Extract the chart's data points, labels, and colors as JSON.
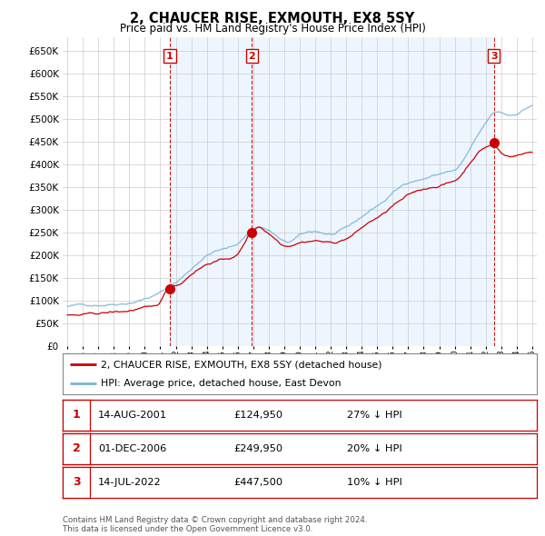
{
  "title": "2, CHAUCER RISE, EXMOUTH, EX8 5SY",
  "subtitle": "Price paid vs. HM Land Registry's House Price Index (HPI)",
  "hpi_color": "#7ab4d8",
  "price_color": "#cc0000",
  "shade_color": "#ddeeff",
  "vline_color": "#cc0000",
  "bg_color": "#ffffff",
  "grid_color": "#cccccc",
  "ylim": [
    0,
    680000
  ],
  "yticks": [
    0,
    50000,
    100000,
    150000,
    200000,
    250000,
    300000,
    350000,
    400000,
    450000,
    500000,
    550000,
    600000,
    650000
  ],
  "xlim_start": 1994.7,
  "xlim_end": 2025.3,
  "purchases": [
    {
      "label": "1",
      "date_str": "14-AUG-2001",
      "year": 2001.617,
      "price": 124950
    },
    {
      "label": "2",
      "date_str": "01-DEC-2006",
      "year": 2006.917,
      "price": 249950
    },
    {
      "label": "3",
      "date_str": "14-JUL-2022",
      "year": 2022.535,
      "price": 447500
    }
  ],
  "table_rows": [
    {
      "num": "1",
      "date": "14-AUG-2001",
      "price": "£124,950",
      "hpi": "27% ↓ HPI"
    },
    {
      "num": "2",
      "date": "01-DEC-2006",
      "price": "£249,950",
      "hpi": "20% ↓ HPI"
    },
    {
      "num": "3",
      "date": "14-JUL-2022",
      "price": "£447,500",
      "hpi": "10% ↓ HPI"
    }
  ],
  "footnote": "Contains HM Land Registry data © Crown copyright and database right 2024.\nThis data is licensed under the Open Government Licence v3.0."
}
